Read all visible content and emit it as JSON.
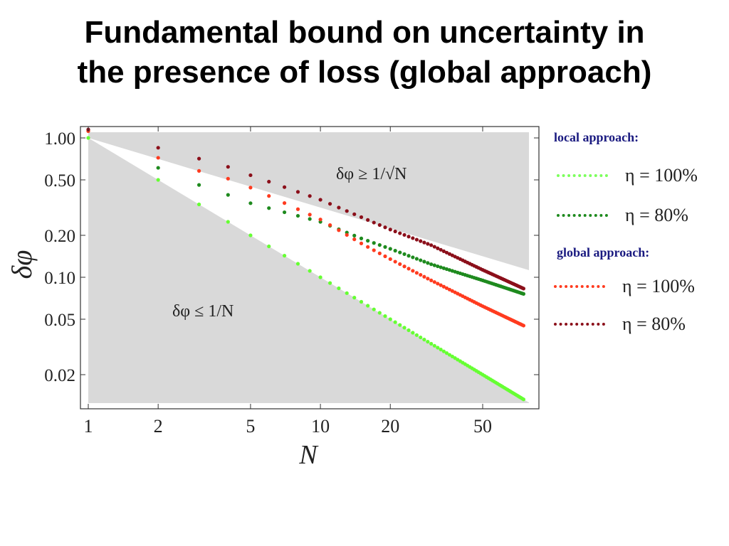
{
  "slide": {
    "title_line1": "Fundamental bound on uncertainty in",
    "title_line2": "the presence of loss (global approach)"
  },
  "legend": {
    "local_heading": "local approach:",
    "global_heading": "global approach:",
    "items": [
      {
        "group": "local",
        "label": "η = 100%",
        "color": "#7cff5c"
      },
      {
        "group": "local",
        "label": "η = 80%",
        "color": "#1e8a1e"
      },
      {
        "group": "global",
        "label": "η = 100%",
        "color": "#ff3b1f"
      },
      {
        "group": "global",
        "label": "η = 80%",
        "color": "#8b0f1a"
      }
    ]
  },
  "annotations": {
    "upper_region": "δφ ≥ 1/√N",
    "lower_region": "δφ ≤ 1/N"
  },
  "chart_data": {
    "type": "scatter",
    "xlabel": "N",
    "ylabel": "δφ",
    "xscale": "log",
    "yscale": "log",
    "xlim": [
      0.95,
      80
    ],
    "ylim": [
      0.013,
      1.2
    ],
    "xticks": [
      1,
      2,
      5,
      10,
      20,
      50
    ],
    "xtick_labels": [
      "1",
      "2",
      "5",
      "10",
      "20",
      "50"
    ],
    "yticks": [
      1.0,
      0.5,
      0.2,
      0.1,
      0.05,
      0.02
    ],
    "ytick_labels": [
      "1.00",
      "0.50",
      "0.20",
      "0.10",
      "0.05",
      "0.02"
    ],
    "grid": false,
    "legend_position": "right",
    "shaded_region_color": "#d9d9d9",
    "series": [
      {
        "name": "local approach: η = 100%",
        "color": "#66ff33",
        "n_points": [
          [
            1,
            1.0
          ],
          [
            2,
            0.5
          ],
          [
            5,
            0.2
          ],
          [
            10,
            0.1
          ],
          [
            20,
            0.05
          ],
          [
            50,
            0.02
          ],
          [
            75,
            0.0133
          ]
        ]
      },
      {
        "name": "local approach: η = 80%",
        "color": "#1e8a1e",
        "n_points": [
          [
            1,
            1.12
          ],
          [
            2,
            0.61
          ],
          [
            3,
            0.46
          ],
          [
            4,
            0.39
          ],
          [
            5,
            0.34
          ],
          [
            10,
            0.25
          ],
          [
            15,
            0.19
          ],
          [
            20,
            0.16
          ],
          [
            30,
            0.124
          ],
          [
            50,
            0.095
          ],
          [
            75,
            0.076
          ]
        ]
      },
      {
        "name": "global approach: η = 100%",
        "color": "#ff3b1f",
        "n_points": [
          [
            1,
            1.12
          ],
          [
            2,
            0.72
          ],
          [
            3,
            0.58
          ],
          [
            4,
            0.51
          ],
          [
            5,
            0.44
          ],
          [
            10,
            0.26
          ],
          [
            15,
            0.175
          ],
          [
            20,
            0.135
          ],
          [
            30,
            0.095
          ],
          [
            50,
            0.062
          ],
          [
            75,
            0.045
          ]
        ]
      },
      {
        "name": "global approach: η = 80%",
        "color": "#8b0f1a",
        "n_points": [
          [
            1,
            1.15
          ],
          [
            2,
            0.85
          ],
          [
            3,
            0.71
          ],
          [
            4,
            0.62
          ],
          [
            5,
            0.54
          ],
          [
            10,
            0.36
          ],
          [
            15,
            0.27
          ],
          [
            20,
            0.22
          ],
          [
            30,
            0.17
          ],
          [
            50,
            0.113
          ],
          [
            75,
            0.083
          ]
        ]
      }
    ]
  }
}
